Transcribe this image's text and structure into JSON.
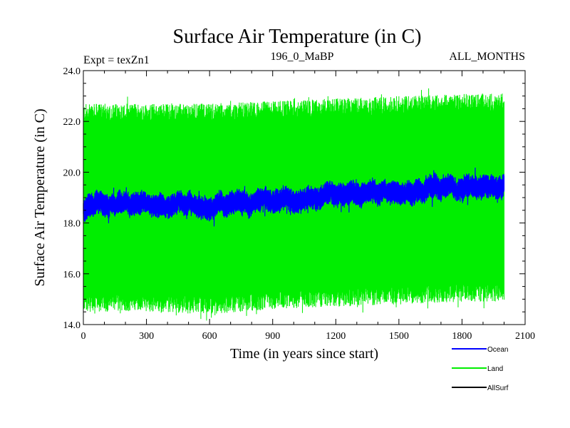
{
  "chart_data": {
    "type": "line",
    "title": "Surface Air Temperature (in C)",
    "subtitle_left": "Expt = texZn1",
    "subtitle_center": "196_0_MaBP",
    "subtitle_right": "ALL_MONTHS",
    "xlabel": "Time (in years since start)",
    "ylabel": "Surface Air Temperature (in C)",
    "xlim": [
      0,
      2100
    ],
    "ylim": [
      14.0,
      24.0
    ],
    "x_ticks": [
      0,
      300,
      600,
      900,
      1200,
      1500,
      1800,
      2100
    ],
    "x_tick_labels": [
      "0",
      "300",
      "600",
      "900",
      "1200",
      "1500",
      "1800",
      "2100"
    ],
    "y_ticks": [
      14.0,
      16.0,
      18.0,
      20.0,
      22.0,
      24.0
    ],
    "y_tick_labels": [
      "14.0",
      "16.0",
      "18.0",
      "20.0",
      "22.0",
      "24.0"
    ],
    "x_range_data": [
      0,
      2000
    ],
    "series": [
      {
        "name": "Land",
        "color": "#00ee00",
        "envelope_x": [
          0,
          300,
          600,
          900,
          1200,
          1500,
          1800,
          2000
        ],
        "envelope_upper": [
          22.4,
          22.4,
          22.4,
          22.5,
          22.6,
          22.7,
          22.8,
          22.8
        ],
        "envelope_lower": [
          14.8,
          14.8,
          14.7,
          14.9,
          15.0,
          15.1,
          15.2,
          15.2
        ],
        "peak_max": 23.3,
        "trough_min": 14.1
      },
      {
        "name": "Ocean",
        "color": "#0000ff",
        "centerline_x": [
          0,
          100,
          200,
          300,
          400,
          500,
          600,
          700,
          800,
          900,
          1000,
          1100,
          1200,
          1300,
          1400,
          1500,
          1600,
          1700,
          1800,
          1900,
          2000
        ],
        "centerline_y": [
          18.6,
          18.7,
          18.8,
          18.8,
          18.8,
          18.7,
          18.6,
          18.8,
          18.8,
          18.9,
          18.9,
          19.0,
          19.1,
          19.1,
          19.2,
          19.2,
          19.3,
          19.4,
          19.4,
          19.5,
          19.4
        ],
        "half_width": 0.35,
        "peak_max": 20.4,
        "trough_min": 17.5
      },
      {
        "name": "AllSurf",
        "color": "#000000"
      }
    ],
    "legend": [
      {
        "label": "Ocean",
        "color": "#0000ff"
      },
      {
        "label": "Land",
        "color": "#00ee00"
      },
      {
        "label": "AllSurf",
        "color": "#000000"
      }
    ]
  }
}
